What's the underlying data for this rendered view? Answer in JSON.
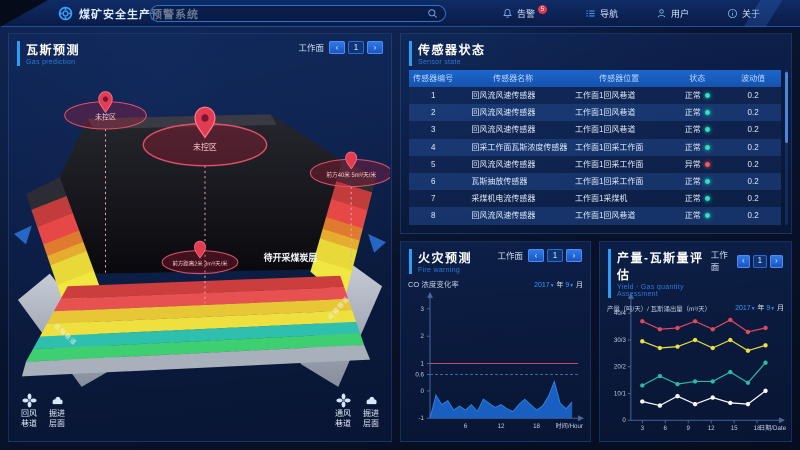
{
  "ui": {
    "caret_down": "▾",
    "accent": "#28a0f8"
  },
  "header": {
    "app_title": "煤矿安全生产预警系统",
    "search": {
      "placeholder": ""
    },
    "nav": [
      {
        "icon": "bell-icon",
        "label": "告警",
        "badge": "5"
      },
      {
        "icon": "list-icon",
        "label": "导航"
      },
      {
        "icon": "user-icon",
        "label": "用户"
      },
      {
        "icon": "info-icon",
        "label": "关于"
      }
    ]
  },
  "pager": {
    "label": "工作面",
    "prev": "‹",
    "page": "1",
    "next": "›"
  },
  "gas_panel": {
    "title": "瓦斯预测",
    "subtitle": "Gas prediction",
    "zone_labels": {
      "left": "未控区",
      "center": "未控区",
      "right": "前方40米 5m³/天/米",
      "bottom": "前方距离2米 3m³/天/米"
    },
    "seam_label": "待开采煤炭层",
    "ramp_label_left": "运输巷道",
    "ramp_label_right": "运输巷道",
    "legend": [
      {
        "icon": "fan-icon",
        "line1": "回风",
        "line2": "巷道"
      },
      {
        "icon": "mining-icon",
        "line1": "掘进",
        "line2": "层面"
      },
      {
        "icon": "fan-icon",
        "line1": "通风",
        "line2": "巷道"
      },
      {
        "icon": "mining-icon",
        "line1": "掘进",
        "line2": "层面"
      }
    ]
  },
  "sensor_panel": {
    "title": "传感器状态",
    "subtitle": "Sensor state",
    "columns": [
      "传感器编号",
      "传感器名称",
      "传感器位置",
      "状态",
      "波动值"
    ],
    "status_colors": {
      "normal": "#2de0c0",
      "abnormal": "#f25858"
    },
    "rows": [
      {
        "id": "1",
        "name": "回风流风速传感器",
        "position": "工作面1回风巷道",
        "status": "正常",
        "status_type": "normal",
        "value": "0.2"
      },
      {
        "id": "2",
        "name": "回风流风速传感器",
        "position": "工作面1回风巷道",
        "status": "正常",
        "status_type": "normal",
        "value": "0.2"
      },
      {
        "id": "3",
        "name": "回风流风速传感器",
        "position": "工作面1回风巷道",
        "status": "正常",
        "status_type": "normal",
        "value": "0.2"
      },
      {
        "id": "4",
        "name": "回采工作面瓦斯浓度传感器",
        "position": "工作面1回采工作面",
        "status": "正常",
        "status_type": "normal",
        "value": "0.2"
      },
      {
        "id": "5",
        "name": "回风流风速传感器",
        "position": "工作面1回采工作面",
        "status": "异常",
        "status_type": "abnormal",
        "value": "0.2"
      },
      {
        "id": "6",
        "name": "瓦斯抽放传感器",
        "position": "工作面1回采工作面",
        "status": "正常",
        "status_type": "normal",
        "value": "0.2"
      },
      {
        "id": "7",
        "name": "采煤机电流传感器",
        "position": "工作面1采煤机",
        "status": "正常",
        "status_type": "normal",
        "value": "0.2"
      },
      {
        "id": "8",
        "name": "回风流风速传感器",
        "position": "工作面1回风巷道",
        "status": "正常",
        "status_type": "normal",
        "value": "0.2"
      }
    ]
  },
  "fire_panel": {
    "title": "火灾预测",
    "subtitle": "Fire warning",
    "chart_title": "CO 浓度变化率",
    "year": "2017",
    "year_unit": "年",
    "month": "9",
    "month_unit": "月"
  },
  "yield_panel": {
    "title": "产量-瓦斯量评估",
    "subtitle": "Yield - Gas quantity Assessment",
    "chart_title": "产量（吨/天）/ 瓦斯涌出量（m³/天）",
    "year": "2017",
    "year_unit": "年",
    "month": "9",
    "month_unit": "月"
  },
  "chart_data": [
    {
      "name": "fire_co_change_rate",
      "type": "area",
      "title": "CO 浓度变化率",
      "xlabel": "时间/Hour",
      "xlim": [
        0,
        25
      ],
      "ylim": [
        -1,
        3.4
      ],
      "yticks": [
        3,
        2,
        1,
        0.6,
        0,
        -1
      ],
      "xticks": [
        6,
        12,
        18
      ],
      "threshold_solid": 1,
      "threshold_dashed": 0.6,
      "threshold_solid_color": "#c2496f",
      "threshold_dashed_color": "#34719f",
      "fill_color": "#1a63c8",
      "x": [
        0,
        1,
        2,
        3,
        4,
        5,
        6,
        7,
        8,
        9,
        10,
        11,
        12,
        13,
        14,
        15,
        16,
        17,
        18,
        19,
        20,
        21,
        22,
        23,
        24
      ],
      "y": [
        -1,
        -0.15,
        -0.5,
        -0.35,
        -0.7,
        -0.55,
        -0.7,
        -0.5,
        -0.75,
        -0.3,
        -0.45,
        -0.6,
        -0.5,
        -0.65,
        -0.75,
        -0.5,
        -0.3,
        -0.5,
        -0.7,
        -0.55,
        -0.2,
        0.35,
        -0.45,
        -0.65,
        -0.4
      ]
    },
    {
      "name": "yield_gas_assessment",
      "type": "line",
      "title": "产量（吨/天）/ 瓦斯涌出量（m³/天）",
      "xlabel": "日期/Date",
      "xlim": [
        1.5,
        21
      ],
      "ylim": [
        0,
        45
      ],
      "yticks": [
        {
          "v": 40,
          "label": "40/4"
        },
        {
          "v": 30,
          "label": "30/3"
        },
        {
          "v": 20,
          "label": "20/2"
        },
        {
          "v": 10,
          "label": "10/1"
        },
        {
          "v": 0,
          "label": "0"
        }
      ],
      "xticks": [
        3,
        6,
        9,
        12,
        15,
        18
      ],
      "x": [
        3,
        5.3,
        7.6,
        9.9,
        12.2,
        14.5,
        16.8,
        19.1
      ],
      "series": [
        {
          "name": "series-red",
          "color": "#e04b5c",
          "values": [
            37,
            34,
            34.5,
            37,
            34,
            37.5,
            33,
            34.5
          ]
        },
        {
          "name": "series-yellow",
          "color": "#e9e23f",
          "values": [
            29.5,
            27,
            27.5,
            30,
            27,
            30,
            26,
            28
          ]
        },
        {
          "name": "series-teal",
          "color": "#2cb9a6",
          "values": [
            13,
            16.5,
            13.5,
            14.5,
            14.5,
            18,
            14,
            21.5
          ]
        },
        {
          "name": "series-white",
          "color": "#ffffff",
          "values": [
            7,
            5.5,
            9,
            6,
            8.5,
            6.5,
            6,
            11
          ]
        }
      ]
    }
  ]
}
